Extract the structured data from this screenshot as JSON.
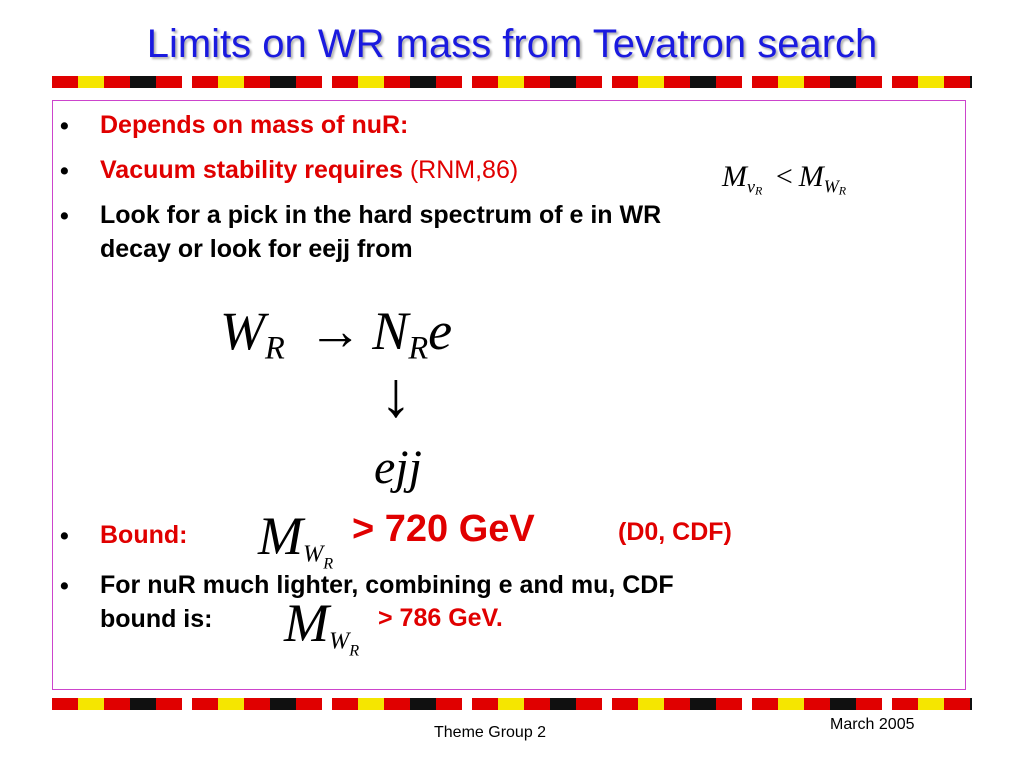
{
  "slide": {
    "title": "Limits on WR mass from Tevatron search",
    "bullets": [
      {
        "text": "Depends on mass of nuR:"
      },
      {
        "text": "Vacuum stability requires ",
        "note": "(RNM,86)"
      },
      {
        "line1": "Look for a pick in the hard spectrum of e in WR",
        "line2": "decay or look for eejj from"
      },
      {
        "label": "Bound:",
        "value": "> 720 GeV",
        "refs": "(D0, CDF)"
      },
      {
        "line1": "For nuR much lighter, combining e and mu, CDF",
        "line2": "bound is:",
        "value": "> 786 GeV."
      }
    ],
    "bullet_glyph": "•"
  },
  "formulas": {
    "ineq_M": "M",
    "ineq_sub1": "ν",
    "ineq_sub1b": "R",
    "ineq_lt": "<",
    "ineq_M2": "M",
    "ineq_sub2": "W",
    "ineq_sub2b": "R",
    "decay_W": "W",
    "decay_R": "R",
    "decay_arrow": "→",
    "decay_N": "N",
    "decay_R2": "R",
    "decay_e": "e",
    "down_arrow": "↓",
    "ejj": "ejj",
    "bound_M": "M",
    "bound_W": "W",
    "bound_R": "R"
  },
  "footer": {
    "center": "Theme Group 2",
    "right": "March 2005"
  }
}
